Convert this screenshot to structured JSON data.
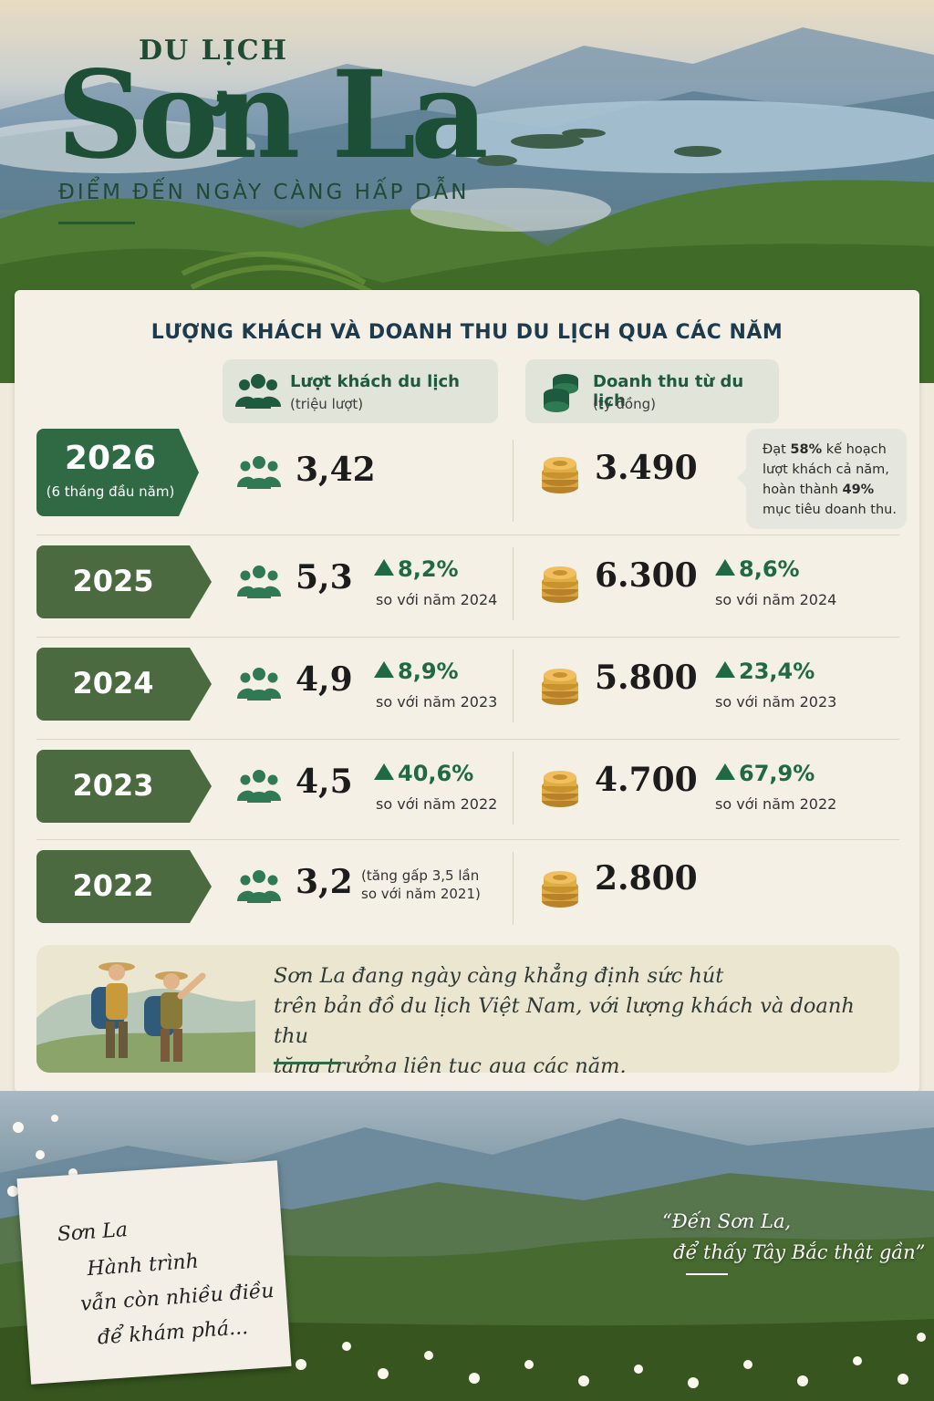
{
  "header": {
    "supertitle": "DU LỊCH",
    "title": "Sơn La",
    "subtitle": "ĐIỂM ĐẾN NGÀY CÀNG HẤP DẪN"
  },
  "section_title": "LƯỢNG KHÁCH VÀ DOANH THU DU LỊCH QUA CÁC NĂM",
  "columns": {
    "visitors": {
      "label": "Lượt khách du lịch",
      "unit": "(triệu lượt)",
      "icon": "people-icon"
    },
    "revenue": {
      "label": "Doanh thu từ du lịch",
      "unit": "(tỷ đồng)",
      "icon": "coins-icon"
    }
  },
  "rows": [
    {
      "year": "2026",
      "year_note": "(6 tháng đầu năm)",
      "visitors": "3,42",
      "revenue": "3.490"
    },
    {
      "year": "2025",
      "visitors": "5,3",
      "visitors_change": "8,2%",
      "visitors_compare": "so với năm 2024",
      "revenue": "6.300",
      "revenue_change": "8,6%",
      "revenue_compare": "so với năm 2024"
    },
    {
      "year": "2024",
      "visitors": "4,9",
      "visitors_change": "8,9%",
      "visitors_compare": "so với năm 2023",
      "revenue": "5.800",
      "revenue_change": "23,4%",
      "revenue_compare": "so với năm 2023"
    },
    {
      "year": "2023",
      "visitors": "4,5",
      "visitors_change": "40,6%",
      "visitors_compare": "so với năm 2022",
      "revenue": "4.700",
      "revenue_change": "67,9%",
      "revenue_compare": "so với năm 2022"
    },
    {
      "year": "2022",
      "visitors": "3,2",
      "visitors_note_1": "(tăng gấp 3,5 lần",
      "visitors_note_2": "so với năm 2021)",
      "revenue": "2.800"
    }
  ],
  "callout": {
    "p1": "Đạt ",
    "b1": "58%",
    "p2": " kế hoạch lượt khách cả năm, hoàn thành ",
    "b2": "49%",
    "p3": " mục tiêu doanh thu."
  },
  "summary": {
    "line1": "Sơn La đang ngày càng khẳng định sức hút",
    "line2": "trên bản đồ du lịch Việt Nam, với lượng khách và doanh thu",
    "line3": "tăng trưởng liên tục qua các năm."
  },
  "footer": {
    "note_lines": [
      "Sơn La",
      "Hành trình",
      "vẫn còn nhiều điều",
      "để khám phá..."
    ],
    "quote_line1": "“Đến Sơn La,",
    "quote_line2": "để thấy Tây Bắc thật gần”"
  },
  "colors": {
    "primary_green": "#2f6a45",
    "olive": "#4b6a3f",
    "coin_gold": "#d9a43a",
    "paper": "#f4f0e6"
  }
}
